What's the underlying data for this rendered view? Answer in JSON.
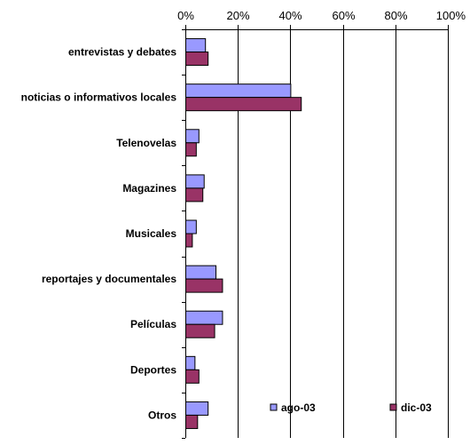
{
  "chart_data": {
    "type": "bar",
    "orientation": "horizontal",
    "categories": [
      "entrevistas y debates",
      "noticias o informativos locales",
      "Telenovelas",
      "Magazines",
      "Musicales",
      "reportajes y documentales",
      "Películas",
      "Deportes",
      "Otros"
    ],
    "series": [
      {
        "name": "ago-03",
        "color": "#9999ff",
        "values": [
          7.5,
          40,
          5,
          7,
          4,
          11.5,
          14,
          3.5,
          8.5
        ]
      },
      {
        "name": "dic-03",
        "color": "#993366",
        "values": [
          8.5,
          44,
          4,
          6.5,
          2.5,
          14,
          11,
          5,
          4.5
        ]
      }
    ],
    "xlim": [
      0,
      100
    ],
    "x_ticks": [
      "0%",
      "20%",
      "40%",
      "60%",
      "80%",
      "100%"
    ],
    "x_axis_position": "top",
    "grid": "vertical",
    "legend": "bottom-right inside plot",
    "title": "",
    "xlabel": "",
    "ylabel": ""
  }
}
